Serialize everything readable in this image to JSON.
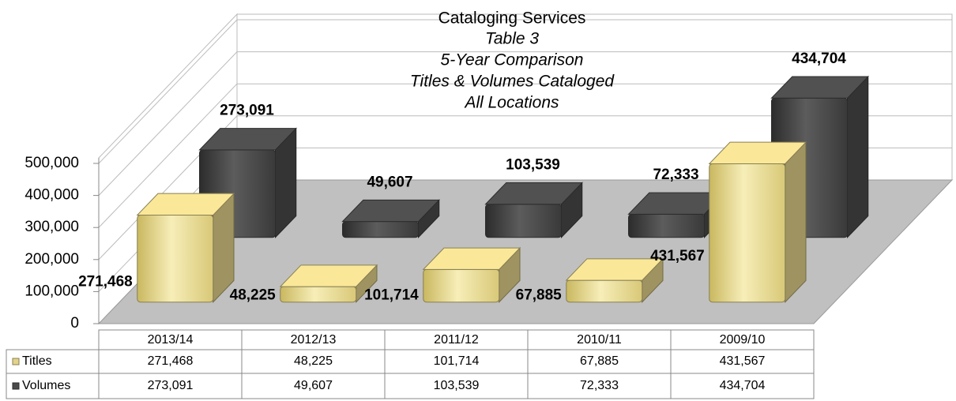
{
  "chart_data": {
    "type": "bar3d",
    "title": "Cataloging Services",
    "subtitle": [
      "Table 3",
      "5-Year Comparison",
      "Titles & Volumes Cataloged",
      "All Locations"
    ],
    "categories": [
      "2013/14",
      "2012/13",
      "2011/12",
      "2010/11",
      "2009/10"
    ],
    "series": [
      {
        "name": "Titles",
        "color": "#e3d38a",
        "values": [
          271468,
          48225,
          101714,
          67885,
          431567
        ],
        "value_labels": [
          "271,468",
          "48,225",
          "101,714",
          "67,885",
          "431,567"
        ]
      },
      {
        "name": "Volumes",
        "color": "#4a4a4a",
        "values": [
          273091,
          49607,
          103539,
          72333,
          434704
        ],
        "value_labels": [
          "273,091",
          "49,607",
          "103,539",
          "72,333",
          "434,704"
        ]
      }
    ],
    "ylim": [
      0,
      500000
    ],
    "yticks": [
      0,
      {
        "value": 100000,
        "label": "100,000"
      },
      {
        "value": 200000,
        "label": "200,000"
      },
      {
        "value": 300000,
        "label": "300,000"
      },
      {
        "value": 400000,
        "label": "400,000"
      },
      {
        "value": 500000,
        "label": "500,000"
      }
    ],
    "grid": true
  }
}
